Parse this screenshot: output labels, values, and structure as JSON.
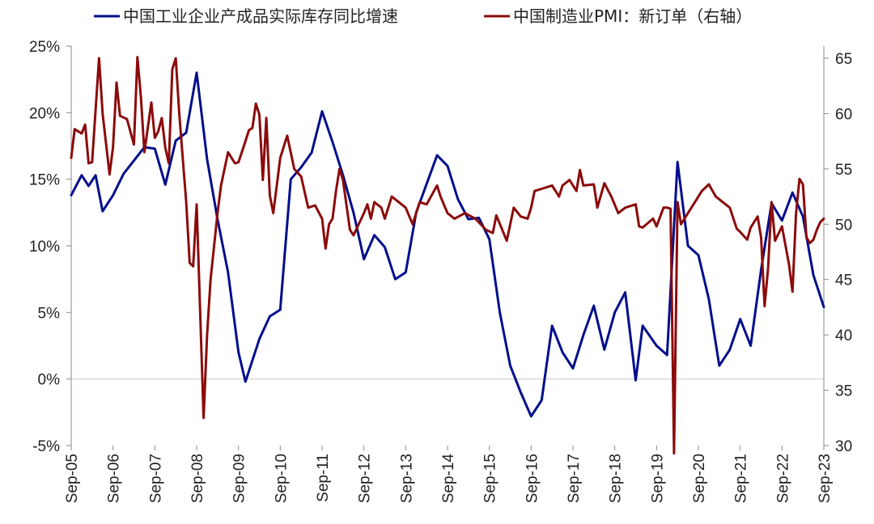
{
  "chart_data": {
    "type": "line",
    "dual_axis": true,
    "legend_position": "top",
    "grid": false,
    "x_ticks": [
      "Sep-05",
      "Sep-06",
      "Sep-07",
      "Sep-08",
      "Sep-09",
      "Sep-10",
      "Sep-11",
      "Sep-12",
      "Sep-13",
      "Sep-14",
      "Sep-15",
      "Sep-16",
      "Sep-17",
      "Sep-18",
      "Sep-19",
      "Sep-20",
      "Sep-21",
      "Sep-22",
      "Sep-23"
    ],
    "y_left": {
      "ticks": [
        "-5%",
        "0%",
        "5%",
        "10%",
        "15%",
        "20%",
        "25%"
      ],
      "tick_values": [
        -5,
        0,
        5,
        10,
        15,
        20,
        25
      ],
      "range": [
        -5,
        25
      ],
      "negative_tick_color": "#e0000f"
    },
    "y_right": {
      "ticks": [
        "30",
        "35",
        "40",
        "45",
        "50",
        "55",
        "60",
        "65"
      ],
      "tick_values": [
        30,
        35,
        40,
        45,
        50,
        55,
        60,
        65
      ],
      "range": [
        30,
        66
      ]
    },
    "series": [
      {
        "name": "中国工业企业产成品实际库存同比增速",
        "axis": "left",
        "color": "#000e8c",
        "points": [
          [
            "2005-09",
            13.8
          ],
          [
            "2005-12",
            15.3
          ],
          [
            "2006-02",
            14.5
          ],
          [
            "2006-04",
            15.3
          ],
          [
            "2006-06",
            12.6
          ],
          [
            "2006-09",
            13.8
          ],
          [
            "2006-12",
            15.4
          ],
          [
            "2007-03",
            16.4
          ],
          [
            "2007-06",
            17.4
          ],
          [
            "2007-09",
            17.3
          ],
          [
            "2007-12",
            14.6
          ],
          [
            "2008-03",
            17.9
          ],
          [
            "2008-06",
            18.5
          ],
          [
            "2008-09",
            23.0
          ],
          [
            "2008-12",
            16.5
          ],
          [
            "2009-03",
            12.0
          ],
          [
            "2009-06",
            8.0
          ],
          [
            "2009-09",
            2.0
          ],
          [
            "2009-11",
            -0.2
          ],
          [
            "2010-03",
            3.0
          ],
          [
            "2010-06",
            4.7
          ],
          [
            "2010-09",
            5.2
          ],
          [
            "2010-12",
            15.0
          ],
          [
            "2011-03",
            15.9
          ],
          [
            "2011-06",
            17.0
          ],
          [
            "2011-09",
            20.1
          ],
          [
            "2011-12",
            17.8
          ],
          [
            "2012-03",
            15.3
          ],
          [
            "2012-06",
            12.5
          ],
          [
            "2012-09",
            9.0
          ],
          [
            "2012-12",
            10.8
          ],
          [
            "2013-03",
            9.9
          ],
          [
            "2013-06",
            7.5
          ],
          [
            "2013-09",
            8.0
          ],
          [
            "2013-12",
            12.5
          ],
          [
            "2014-06",
            16.8
          ],
          [
            "2014-09",
            16.0
          ],
          [
            "2014-12",
            13.5
          ],
          [
            "2015-03",
            12.0
          ],
          [
            "2015-06",
            12.1
          ],
          [
            "2015-09",
            10.5
          ],
          [
            "2015-12",
            5.0
          ],
          [
            "2016-03",
            1.0
          ],
          [
            "2016-06",
            -1.0
          ],
          [
            "2016-09",
            -2.8
          ],
          [
            "2016-12",
            -1.6
          ],
          [
            "2017-03",
            4.0
          ],
          [
            "2017-06",
            2.0
          ],
          [
            "2017-09",
            0.8
          ],
          [
            "2017-12",
            3.3
          ],
          [
            "2018-03",
            5.5
          ],
          [
            "2018-06",
            2.2
          ],
          [
            "2018-09",
            5.0
          ],
          [
            "2018-12",
            6.5
          ],
          [
            "2019-03",
            -0.1
          ],
          [
            "2019-05",
            4.0
          ],
          [
            "2019-09",
            2.5
          ],
          [
            "2019-12",
            1.8
          ],
          [
            "2020-03",
            16.3
          ],
          [
            "2020-06",
            10.0
          ],
          [
            "2020-09",
            9.3
          ],
          [
            "2020-12",
            6.0
          ],
          [
            "2021-03",
            1.0
          ],
          [
            "2021-06",
            2.2
          ],
          [
            "2021-09",
            4.5
          ],
          [
            "2021-12",
            2.5
          ],
          [
            "2022-03",
            8.2
          ],
          [
            "2022-06",
            13.2
          ],
          [
            "2022-09",
            11.9
          ],
          [
            "2022-12",
            14.0
          ],
          [
            "2023-03",
            12.2
          ],
          [
            "2023-06",
            7.8
          ],
          [
            "2023-09",
            5.4
          ]
        ]
      },
      {
        "name": "中国制造业PMI：新订单（右轴）",
        "axis": "right",
        "color": "#8b0b0b",
        "points": [
          [
            "2005-09",
            56.0
          ],
          [
            "2005-10",
            58.6
          ],
          [
            "2005-12",
            58.2
          ],
          [
            "2006-01",
            59.0
          ],
          [
            "2006-02",
            55.5
          ],
          [
            "2006-03",
            55.6
          ],
          [
            "2006-05",
            65.0
          ],
          [
            "2006-06",
            60.0
          ],
          [
            "2006-08",
            54.5
          ],
          [
            "2006-09",
            57.0
          ],
          [
            "2006-10",
            62.8
          ],
          [
            "2006-11",
            59.8
          ],
          [
            "2007-01",
            59.5
          ],
          [
            "2007-03",
            57.2
          ],
          [
            "2007-04",
            65.1
          ],
          [
            "2007-05",
            61.5
          ],
          [
            "2007-06",
            56.5
          ],
          [
            "2007-08",
            61.0
          ],
          [
            "2007-09",
            57.8
          ],
          [
            "2007-10",
            58.4
          ],
          [
            "2007-11",
            59.6
          ],
          [
            "2007-12",
            56.9
          ],
          [
            "2008-01",
            55.5
          ],
          [
            "2008-02",
            64.0
          ],
          [
            "2008-03",
            65.0
          ],
          [
            "2008-04",
            60.0
          ],
          [
            "2008-05",
            56.0
          ],
          [
            "2008-06",
            52.0
          ],
          [
            "2008-07",
            46.5
          ],
          [
            "2008-08",
            46.2
          ],
          [
            "2008-09",
            51.8
          ],
          [
            "2008-11",
            32.5
          ],
          [
            "2008-12",
            40.0
          ],
          [
            "2009-01",
            45.0
          ],
          [
            "2009-03",
            51.0
          ],
          [
            "2009-04",
            53.5
          ],
          [
            "2009-06",
            56.5
          ],
          [
            "2009-08",
            55.5
          ],
          [
            "2009-09",
            55.6
          ],
          [
            "2009-11",
            57.5
          ],
          [
            "2009-12",
            58.5
          ],
          [
            "2010-01",
            58.7
          ],
          [
            "2010-02",
            60.9
          ],
          [
            "2010-03",
            59.9
          ],
          [
            "2010-04",
            54.0
          ],
          [
            "2010-05",
            59.6
          ],
          [
            "2010-06",
            52.6
          ],
          [
            "2010-07",
            51.0
          ],
          [
            "2010-09",
            56.0
          ],
          [
            "2010-11",
            58.0
          ],
          [
            "2011-01",
            55.0
          ],
          [
            "2011-03",
            54.3
          ],
          [
            "2011-05",
            51.5
          ],
          [
            "2011-07",
            51.7
          ],
          [
            "2011-09",
            50.5
          ],
          [
            "2011-10",
            47.8
          ],
          [
            "2011-11",
            50.0
          ],
          [
            "2011-12",
            50.5
          ],
          [
            "2012-01",
            53.0
          ],
          [
            "2012-02",
            55.0
          ],
          [
            "2012-03",
            54.0
          ],
          [
            "2012-05",
            49.5
          ],
          [
            "2012-06",
            49.0
          ],
          [
            "2012-09",
            51.0
          ],
          [
            "2012-10",
            51.8
          ],
          [
            "2012-11",
            50.5
          ],
          [
            "2012-12",
            52.0
          ],
          [
            "2013-02",
            51.5
          ],
          [
            "2013-03",
            50.5
          ],
          [
            "2013-05",
            52.5
          ],
          [
            "2013-09",
            51.5
          ],
          [
            "2013-11",
            50.0
          ],
          [
            "2014-01",
            52.0
          ],
          [
            "2014-03",
            51.8
          ],
          [
            "2014-06",
            53.5
          ],
          [
            "2014-07",
            52.5
          ],
          [
            "2014-09",
            51.0
          ],
          [
            "2014-11",
            50.5
          ],
          [
            "2015-02",
            51.0
          ],
          [
            "2015-05",
            50.5
          ],
          [
            "2015-08",
            49.5
          ],
          [
            "2015-10",
            49.2
          ],
          [
            "2015-11",
            50.8
          ],
          [
            "2016-02",
            48.5
          ],
          [
            "2016-04",
            51.5
          ],
          [
            "2016-06",
            50.7
          ],
          [
            "2016-08",
            50.5
          ],
          [
            "2016-09",
            51.5
          ],
          [
            "2016-10",
            53.0
          ],
          [
            "2016-12",
            53.2
          ],
          [
            "2017-03",
            53.5
          ],
          [
            "2017-05",
            52.5
          ],
          [
            "2017-06",
            53.5
          ],
          [
            "2017-08",
            54.0
          ],
          [
            "2017-10",
            53.0
          ],
          [
            "2017-11",
            54.9
          ],
          [
            "2017-12",
            53.5
          ],
          [
            "2018-03",
            53.6
          ],
          [
            "2018-04",
            51.5
          ],
          [
            "2018-06",
            53.7
          ],
          [
            "2018-08",
            52.5
          ],
          [
            "2018-10",
            51.0
          ],
          [
            "2018-12",
            51.5
          ],
          [
            "2019-03",
            51.8
          ],
          [
            "2019-04",
            49.8
          ],
          [
            "2019-05",
            49.7
          ],
          [
            "2019-08",
            50.5
          ],
          [
            "2019-09",
            49.8
          ],
          [
            "2019-11",
            51.5
          ],
          [
            "2019-12",
            51.5
          ],
          [
            "2020-01",
            51.4
          ],
          [
            "2020-02",
            29.3
          ],
          [
            "2020-03",
            52.0
          ],
          [
            "2020-04",
            50.0
          ],
          [
            "2020-06",
            51.0
          ],
          [
            "2020-08",
            52.0
          ],
          [
            "2020-10",
            53.0
          ],
          [
            "2020-12",
            53.6
          ],
          [
            "2021-02",
            52.5
          ],
          [
            "2021-04",
            52.0
          ],
          [
            "2021-06",
            51.5
          ],
          [
            "2021-08",
            49.6
          ],
          [
            "2021-09",
            49.3
          ],
          [
            "2021-11",
            48.6
          ],
          [
            "2021-12",
            49.7
          ],
          [
            "2022-02",
            50.7
          ],
          [
            "2022-03",
            48.8
          ],
          [
            "2022-04",
            42.6
          ],
          [
            "2022-05",
            46.0
          ],
          [
            "2022-06",
            52.0
          ],
          [
            "2022-07",
            48.5
          ],
          [
            "2022-09",
            49.8
          ],
          [
            "2022-11",
            46.4
          ],
          [
            "2022-12",
            43.9
          ],
          [
            "2023-01",
            50.9
          ],
          [
            "2023-02",
            54.1
          ],
          [
            "2023-03",
            53.6
          ],
          [
            "2023-04",
            48.8
          ],
          [
            "2023-05",
            48.3
          ],
          [
            "2023-06",
            48.6
          ],
          [
            "2023-07",
            49.5
          ],
          [
            "2023-08",
            50.2
          ],
          [
            "2023-09",
            50.5
          ]
        ]
      }
    ]
  }
}
